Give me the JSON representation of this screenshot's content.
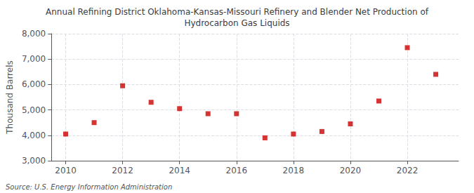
{
  "chart_data": {
    "type": "scatter",
    "title": "Annual Refining District Oklahoma-Kansas-Missouri Refinery and Blender Net Production of\nHydrocarbon Gas Liquids",
    "ylabel": "Thousand Barrels",
    "annotations": [
      "Source: U.S. Energy Information Administration"
    ],
    "x": [
      2010,
      2011,
      2012,
      2013,
      2014,
      2015,
      2016,
      2017,
      2018,
      2019,
      2020,
      2021,
      2022,
      2023
    ],
    "values": [
      4050,
      4500,
      5950,
      5300,
      5050,
      4850,
      4850,
      3900,
      4050,
      4150,
      4450,
      5350,
      7450,
      6400
    ],
    "color": "#cc0000",
    "marker": "square",
    "xlim": [
      2009.5,
      2023.8
    ],
    "xticks": [
      2010,
      2012,
      2014,
      2016,
      2018,
      2020,
      2022
    ],
    "ylim": [
      3000,
      8000
    ],
    "yticks": [
      {
        "value": 3000,
        "label": "3,000"
      },
      {
        "value": 4000,
        "label": "4,000"
      },
      {
        "value": 5000,
        "label": "5,000"
      },
      {
        "value": 6000,
        "label": "6,000"
      },
      {
        "value": 7000,
        "label": "7,000"
      },
      {
        "value": 8000,
        "label": "8,000"
      }
    ],
    "grid": true
  }
}
